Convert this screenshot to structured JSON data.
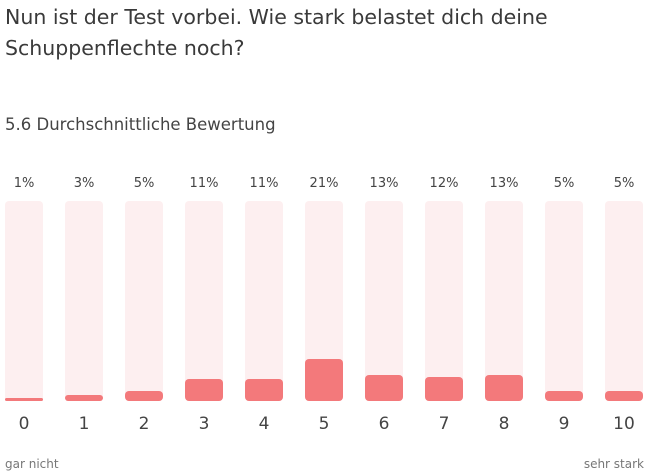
{
  "question": "Nun ist der Test vorbei. Wie stark belastet dich deine Schuppenflechte noch?",
  "average_label": "5.6 Durchschnittliche Bewertung",
  "scale": {
    "min_label": "gar nicht",
    "max_label": "sehr stark"
  },
  "colors": {
    "bar": "#f3797b",
    "track": "#fdeff0"
  },
  "chart_data": {
    "type": "bar",
    "categories": [
      "0",
      "1",
      "2",
      "3",
      "4",
      "5",
      "6",
      "7",
      "8",
      "9",
      "10"
    ],
    "values": [
      1,
      3,
      5,
      11,
      11,
      21,
      13,
      12,
      13,
      5,
      5
    ],
    "value_labels": [
      "1%",
      "3%",
      "5%",
      "11%",
      "11%",
      "21%",
      "13%",
      "12%",
      "13%",
      "5%",
      "5%"
    ],
    "ylim": [
      0,
      100
    ],
    "grid": false,
    "legend": "none"
  }
}
